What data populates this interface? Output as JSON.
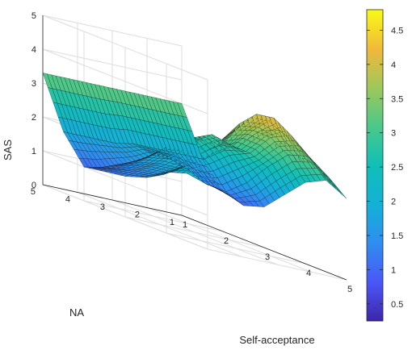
{
  "chart_data": {
    "type": "surface",
    "title": "",
    "xlabel": "Self-acceptance",
    "ylabel": "NA",
    "zlabel": "SAS",
    "xlim": [
      1,
      5
    ],
    "ylim": [
      1,
      5
    ],
    "zlim": [
      0,
      5
    ],
    "x_ticks": [
      "1",
      "2",
      "3",
      "4",
      "5"
    ],
    "y_ticks": [
      "1",
      "2",
      "3",
      "4",
      "5"
    ],
    "z_ticks": [
      "0",
      "1",
      "2",
      "3",
      "4",
      "5"
    ],
    "grid": true,
    "colormap": "parula",
    "colorbar": {
      "range": [
        0.25,
        4.8
      ],
      "ticks": [
        "0.5",
        "1",
        "1.5",
        "2",
        "2.5",
        "3",
        "3.5",
        "4",
        "4.5"
      ]
    },
    "grid_x": [
      1,
      1.5,
      2,
      2.5,
      3,
      3.5,
      4,
      4.5,
      5
    ],
    "grid_y": [
      1,
      1.5,
      2,
      2.5,
      3,
      3.5,
      4,
      4.5,
      5
    ],
    "z": [
      [
        3.3,
        1.9,
        1.2,
        1.0,
        1.2,
        1.8,
        2.4,
        2.7,
        2.4
      ],
      [
        3.3,
        1.9,
        1.3,
        1.3,
        1.8,
        2.5,
        3.1,
        3.3,
        2.9
      ],
      [
        3.3,
        1.9,
        1.6,
        2.0,
        2.5,
        2.8,
        3.5,
        3.8,
        3.1
      ],
      [
        3.3,
        1.9,
        1.8,
        2.5,
        3.0,
        2.9,
        3.6,
        4.2,
        3.0
      ],
      [
        3.3,
        1.9,
        1.8,
        2.4,
        2.8,
        2.6,
        3.5,
        4.2,
        2.5
      ],
      [
        3.3,
        1.8,
        1.5,
        2.0,
        2.2,
        2.2,
        3.0,
        3.8,
        2.1
      ],
      [
        3.3,
        1.8,
        1.3,
        1.6,
        1.8,
        1.9,
        2.5,
        3.0,
        1.9
      ],
      [
        3.3,
        1.8,
        1.1,
        1.3,
        1.5,
        1.6,
        2.1,
        2.4,
        1.9
      ],
      [
        3.3,
        1.8,
        1.0,
        1.1,
        1.2,
        1.4,
        1.8,
        2.0,
        1.9
      ]
    ]
  },
  "colors": {
    "axis": "#262626",
    "grid": "#dddddd",
    "mesh": "#111111"
  }
}
